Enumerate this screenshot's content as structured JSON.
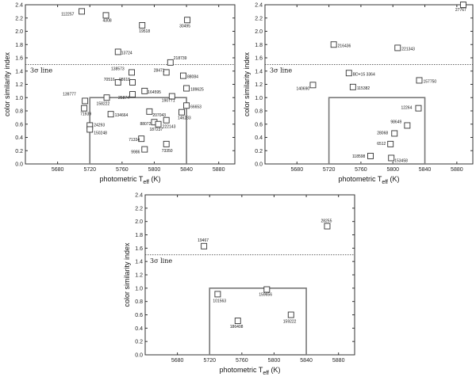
{
  "chart_data": [
    {
      "type": "scatter",
      "xlabel": "photometric T",
      "xlabel_sub": "eff",
      "xlabel_unit": " (K)",
      "ylabel": "color similarity index",
      "xlim": [
        5640,
        5900
      ],
      "ylim": [
        0.0,
        2.4
      ],
      "xticks": [
        5680,
        5720,
        5760,
        5800,
        5840,
        5880
      ],
      "yticks": [
        0.0,
        0.2,
        0.4,
        0.6,
        0.8,
        1.0,
        1.2,
        1.4,
        1.6,
        1.8,
        2.0,
        2.2,
        2.4
      ],
      "reference_line": {
        "y": 1.5,
        "label": "3σ line"
      },
      "box": {
        "x": [
          5720,
          5840
        ],
        "y": [
          0.0,
          1.0
        ]
      },
      "points": [
        {
          "label": "112257",
          "x": 5710,
          "y": 2.3
        },
        {
          "label": "4308",
          "x": 5740,
          "y": 2.24
        },
        {
          "label": "19518",
          "x": 5785,
          "y": 2.09
        },
        {
          "label": "30495",
          "x": 5841,
          "y": 2.17
        },
        {
          "label": "13724",
          "x": 5755,
          "y": 1.69
        },
        {
          "label": "218739",
          "x": 5820,
          "y": 1.53
        },
        {
          "label": "28471",
          "x": 5815,
          "y": 1.38
        },
        {
          "label": "138573",
          "x": 5772,
          "y": 1.38
        },
        {
          "label": "88084",
          "x": 5836,
          "y": 1.33
        },
        {
          "label": "70516",
          "x": 5755,
          "y": 1.23
        },
        {
          "label": "98618",
          "x": 5773,
          "y": 1.23
        },
        {
          "label": "164595",
          "x": 5788,
          "y": 1.1
        },
        {
          "label": "189625",
          "x": 5840,
          "y": 1.14
        },
        {
          "label": "139777",
          "x": 5714,
          "y": 0.95
        },
        {
          "label": "25874",
          "x": 5773,
          "y": 1.05
        },
        {
          "label": "158222",
          "x": 5741,
          "y": 1.0
        },
        {
          "label": "190771",
          "x": 5822,
          "y": 1.02
        },
        {
          "label": "66653",
          "x": 5840,
          "y": 0.88
        },
        {
          "label": "71939",
          "x": 5713,
          "y": 0.84
        },
        {
          "label": "134664",
          "x": 5746,
          "y": 0.75
        },
        {
          "label": "207043",
          "x": 5794,
          "y": 0.79
        },
        {
          "label": "146233",
          "x": 5834,
          "y": 0.78
        },
        {
          "label": "24293",
          "x": 5720,
          "y": 0.58
        },
        {
          "label": "150248",
          "x": 5720,
          "y": 0.52
        },
        {
          "label": "88072",
          "x": 5800,
          "y": 0.63
        },
        {
          "label": "187237",
          "x": 5805,
          "y": 0.6
        },
        {
          "label": "222143",
          "x": 5815,
          "y": 0.66
        },
        {
          "label": "71334",
          "x": 5784,
          "y": 0.38
        },
        {
          "label": "9986",
          "x": 5788,
          "y": 0.22
        },
        {
          "label": "73350",
          "x": 5815,
          "y": 0.3
        }
      ]
    },
    {
      "type": "scatter",
      "xlabel": "photometric T",
      "xlabel_sub": "eff",
      "xlabel_unit": " (K)",
      "ylabel": "color similarity index",
      "xlim": [
        5640,
        5900
      ],
      "ylim": [
        0.0,
        2.4
      ],
      "xticks": [
        5680,
        5720,
        5760,
        5800,
        5840,
        5880
      ],
      "yticks": [
        0.0,
        0.2,
        0.4,
        0.6,
        0.8,
        1.0,
        1.2,
        1.4,
        1.6,
        1.8,
        2.0,
        2.2,
        2.4
      ],
      "reference_line": {
        "y": 1.5,
        "label": "3σ line"
      },
      "box": {
        "x": [
          5720,
          5840
        ],
        "y": [
          0.0,
          1.0
        ]
      },
      "points": [
        {
          "label": "27767",
          "x": 5888,
          "y": 2.4
        },
        {
          "label": "216436",
          "x": 5726,
          "y": 1.8
        },
        {
          "label": "221343",
          "x": 5806,
          "y": 1.75
        },
        {
          "label": "BD+15 3364",
          "x": 5745,
          "y": 1.37
        },
        {
          "label": "140690",
          "x": 5700,
          "y": 1.19
        },
        {
          "label": "115382",
          "x": 5750,
          "y": 1.16
        },
        {
          "label": "157750",
          "x": 5833,
          "y": 1.26
        },
        {
          "label": "12264",
          "x": 5832,
          "y": 0.84
        },
        {
          "label": "98649",
          "x": 5818,
          "y": 0.58
        },
        {
          "label": "28068",
          "x": 5802,
          "y": 0.46
        },
        {
          "label": "6512",
          "x": 5797,
          "y": 0.3
        },
        {
          "label": "118598",
          "x": 5772,
          "y": 0.12
        },
        {
          "label": "153458",
          "x": 5798,
          "y": 0.09
        }
      ]
    },
    {
      "type": "scatter",
      "xlabel": "photometric T",
      "xlabel_sub": "eff",
      "xlabel_unit": " (K)",
      "ylabel": "color similarity index",
      "xlim": [
        5640,
        5900
      ],
      "ylim": [
        0.0,
        2.4
      ],
      "xticks": [
        5680,
        5720,
        5760,
        5800,
        5840,
        5880
      ],
      "yticks": [
        0.0,
        0.2,
        0.4,
        0.6,
        0.8,
        1.0,
        1.2,
        1.4,
        1.6,
        1.8,
        2.0,
        2.2,
        2.4
      ],
      "reference_line": {
        "y": 1.5,
        "label": "3σ line"
      },
      "box": {
        "x": [
          5720,
          5840
        ],
        "y": [
          0.0,
          1.0
        ]
      },
      "points": [
        {
          "label": "19467",
          "x": 5713,
          "y": 1.63
        },
        {
          "label": "28255",
          "x": 5866,
          "y": 1.93
        },
        {
          "label": "101563",
          "x": 5730,
          "y": 0.91
        },
        {
          "label": "159656",
          "x": 5791,
          "y": 0.98
        },
        {
          "label": "186408",
          "x": 5755,
          "y": 0.51
        },
        {
          "label": "159222",
          "x": 5821,
          "y": 0.6
        }
      ]
    }
  ]
}
